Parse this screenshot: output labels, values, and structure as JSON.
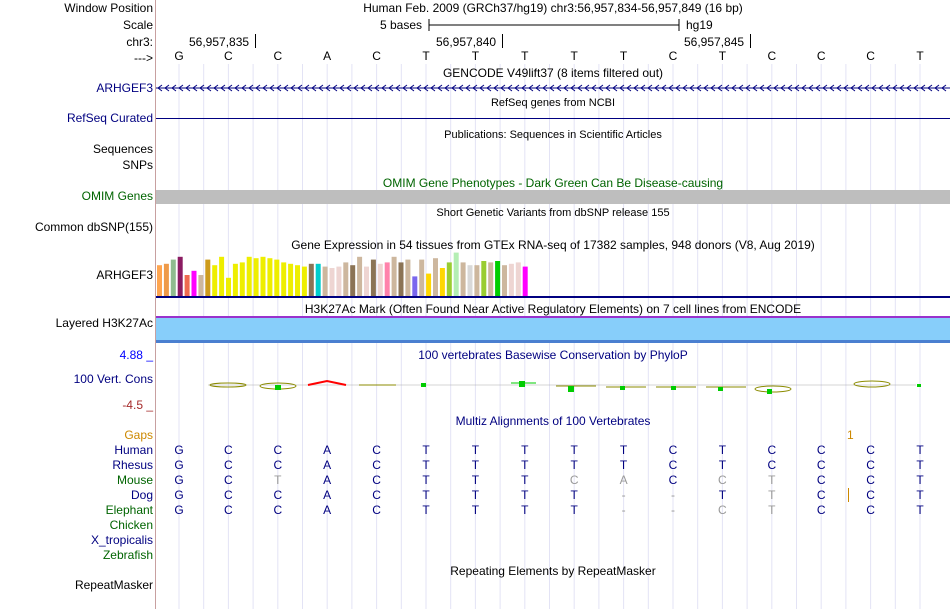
{
  "labels": {
    "window_position": "Window Position",
    "scale": "Scale",
    "chrom": "chr3:",
    "strand_arrow": "--->",
    "gencode_gene": "ARHGEF3",
    "refseq": "RefSeq Curated",
    "sequences": "Sequences",
    "snps": "SNPs",
    "omim": "OMIM Genes",
    "dbsnp": "Common dbSNP(155)",
    "gtex_gene": "ARHGEF3",
    "h3k27ac": "Layered H3K27Ac",
    "cons_max": "4.88 _",
    "cons_label": "100 Vert. Cons",
    "cons_min": "-4.5 _",
    "gaps": "Gaps",
    "species": [
      "Human",
      "Rhesus",
      "Mouse",
      "Dog",
      "Elephant",
      "Chicken",
      "X_tropicalis",
      "Zebrafish"
    ],
    "repeatmasker": "RepeatMasker"
  },
  "header": {
    "assembly": "Human Feb. 2009 (GRCh37/hg19)   chr3:56,957,834-56,957,849 (16 bp)",
    "scale_text": "5 bases",
    "scale_assembly": "hg19",
    "positions": [
      "56,957,835",
      "56,957,840",
      "56,957,845"
    ],
    "sequence": [
      "G",
      "C",
      "C",
      "A",
      "C",
      "T",
      "T",
      "T",
      "T",
      "T",
      "C",
      "T",
      "C",
      "C",
      "C",
      "T"
    ]
  },
  "tracks": {
    "gencode_title": "GENCODE V49lift37 (8 items filtered out)",
    "refseq_title": "RefSeq genes from NCBI",
    "publications_title": "Publications: Sequences in Scientific Articles",
    "omim_title": "OMIM Gene Phenotypes - Dark Green Can Be Disease-causing",
    "dbsnp_title": "Short Genetic Variants from dbSNP release 155",
    "gtex_title": "Gene Expression in 54 tissues from GTEx RNA-seq of 17382 samples, 948 donors (V8, Aug 2019)",
    "h3k27ac_title": "H3K27Ac Mark (Often Found Near Active Regulatory Elements) on 7 cell lines from ENCODE",
    "cons_title": "100 vertebrates Basewise Conservation by PhyloP",
    "multiz_title": "Multiz Alignments of 100 Vertebrates",
    "repeat_title": "Repeating Elements by RepeatMasker"
  },
  "gtex": {
    "values": [
      22,
      23,
      26,
      28,
      15,
      18,
      15,
      26,
      22,
      28,
      13,
      23,
      24,
      28,
      27,
      28,
      27,
      26,
      24,
      23,
      22,
      21,
      23,
      23,
      21,
      20,
      21,
      24,
      22,
      28,
      21,
      26,
      23,
      24,
      28,
      24,
      26,
      14,
      26,
      16,
      27,
      20,
      24,
      31,
      24,
      22,
      22,
      25,
      24,
      25,
      22,
      23,
      24,
      21
    ],
    "colors": [
      "#ffa54f",
      "#ee9a49",
      "#8fbc8f",
      "#8b1c62",
      "#ee6a50",
      "#ff00ff",
      "#cdb79e",
      "#cd9b1d",
      "#eeee00",
      "#eeee00",
      "#eeee00",
      "#eeee00",
      "#eeee00",
      "#eeee00",
      "#eeee00",
      "#eeee00",
      "#eeee00",
      "#eeee00",
      "#eeee00",
      "#eeee00",
      "#eeee00",
      "#eeee00",
      "#8b7355",
      "#00cdcd",
      "#cdb79e",
      "#eed5d2",
      "#eed5d2",
      "#cdb79e",
      "#8b7355",
      "#cdb79e",
      "#eed5d2",
      "#8b7355",
      "#eed5d2",
      "#ff82ab",
      "#cdb79e",
      "#8b7355",
      "#cdb79e",
      "#7a67ee",
      "#cdb79e",
      "#ffd700",
      "#cdb79e",
      "#ffd700",
      "#9acd32",
      "#b4eeb4",
      "#cdb79e",
      "#d9d9d9",
      "#cdb79e",
      "#9acd32",
      "#cdb79e",
      "#00cd00",
      "#cdb79e",
      "#eed5d2",
      "#eed5d2",
      "#ff00ff"
    ]
  },
  "alignments": {
    "Human": [
      "G",
      "C",
      "C",
      "A",
      "C",
      "T",
      "T",
      "T",
      "T",
      "T",
      "C",
      "T",
      "C",
      "C",
      "C",
      "T"
    ],
    "Rhesus": [
      "G",
      "C",
      "C",
      "A",
      "C",
      "T",
      "T",
      "T",
      "T",
      "T",
      "C",
      "T",
      "C",
      "C",
      "C",
      "T"
    ],
    "Mouse": [
      "G",
      "C",
      "T",
      "A",
      "C",
      "T",
      "T",
      "T",
      "C",
      "A",
      "C",
      "C",
      "T",
      "C",
      "C",
      "T"
    ],
    "Dog": [
      "G",
      "C",
      "C",
      "A",
      "C",
      "T",
      "T",
      "T",
      "T",
      "-",
      "-",
      "T",
      "T",
      "C",
      "C",
      "T"
    ],
    "Elephant": [
      "G",
      "C",
      "C",
      "A",
      "C",
      "T",
      "T",
      "T",
      "T",
      "-",
      "-",
      "C",
      "T",
      "C",
      "C",
      "T"
    ],
    "gap_mark": "1"
  },
  "colors": {
    "label_blue": "#000080",
    "omim_green": "#006400",
    "gaps_orange": "#cc8800",
    "h3k27_blue": "#87cefa",
    "cons_max_color": "#0000ff",
    "cons_min_color": "#a52a2a"
  }
}
